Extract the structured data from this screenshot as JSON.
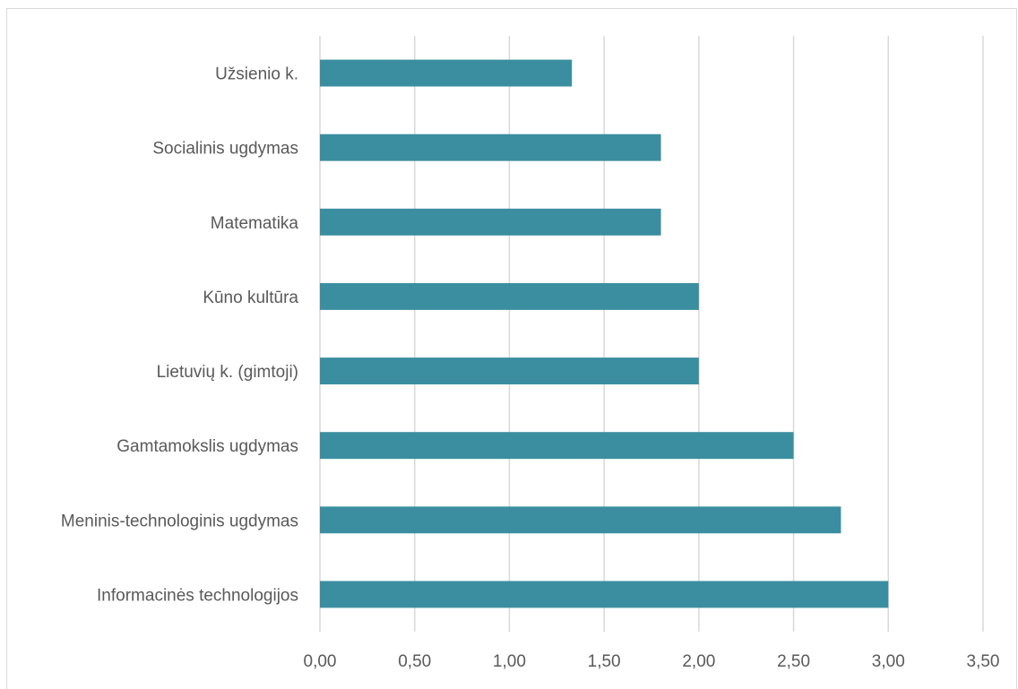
{
  "chart_data": {
    "type": "bar",
    "orientation": "horizontal",
    "title": "",
    "xlabel": "",
    "ylabel": "",
    "categories": [
      "Užsienio k.",
      "Socialinis ugdymas",
      "Matematika",
      "Kūno kultūra",
      "Lietuvių k. (gimtoji)",
      "Gamtamokslis ugdymas",
      "Meninis-technologinis ugdymas",
      "Informacinės technologijos"
    ],
    "values": [
      1.33,
      1.8,
      1.8,
      2.0,
      2.0,
      2.5,
      2.75,
      3.0
    ],
    "xlim": [
      0,
      3.5
    ],
    "xticks": [
      0,
      0.5,
      1,
      1.5,
      2,
      2.5,
      3,
      3.5
    ],
    "xtick_labels": [
      "0,00",
      "0,50",
      "1,00",
      "1,50",
      "2,00",
      "2,50",
      "3,00",
      "3,50"
    ],
    "grid": "vertical",
    "legend": "none",
    "bar_color": "#3b8ea0",
    "grid_color": "#d9d9d9",
    "text_color": "#595959"
  }
}
